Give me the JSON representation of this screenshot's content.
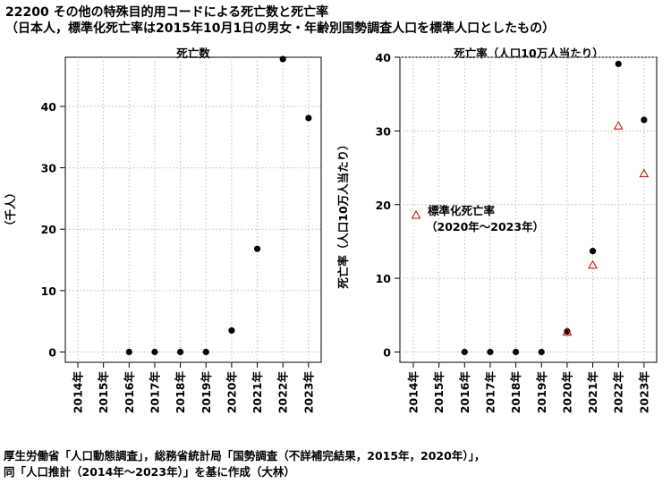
{
  "title": {
    "line1": "22200 その他の特殊目的用コードによる死亡数と死亡率",
    "line2": "（日本人，標準化死亡率は2015年10月1日の男女・年齢別国勢調査人口を標準人口としたもの）"
  },
  "source": {
    "line1": "厚生労働省「人口動態調査」，総務省統計局「国勢調査（不詳補完結果，2015年，2020年）」，",
    "line2": "同「人口推計（2014年～2023年）」を基に作成（大林）"
  },
  "colors": {
    "crude": "#000000",
    "standardized": "#cc0000",
    "grid": "#bbbbbb"
  },
  "chart_data": [
    {
      "type": "scatter",
      "title": "死亡数",
      "ylabel": "（千人）",
      "xlabel": "",
      "categories": [
        "2014年",
        "2015年",
        "2016年",
        "2017年",
        "2018年",
        "2019年",
        "2020年",
        "2021年",
        "2022年",
        "2023年"
      ],
      "ylim": [
        0,
        48
      ],
      "yticks": [
        0,
        10,
        20,
        30,
        40
      ],
      "grid": true,
      "series": [
        {
          "values": [
            null,
            null,
            0,
            0,
            0,
            0,
            3.5,
            16.8,
            47.7,
            38.1
          ],
          "marker": "filled-circle"
        }
      ]
    },
    {
      "type": "scatter",
      "title": "死亡率（人口10万人当たり）",
      "ylabel": "死亡率（人口10万人当たり）",
      "xlabel": "",
      "categories": [
        "2014年",
        "2015年",
        "2016年",
        "2017年",
        "2018年",
        "2019年",
        "2020年",
        "2021年",
        "2022年",
        "2023年"
      ],
      "ylim": [
        0,
        40
      ],
      "yticks": [
        0,
        10,
        20,
        30,
        40
      ],
      "grid": true,
      "legend": {
        "line1": "標準化死亡率",
        "line2": "（2020年～2023年）"
      },
      "series": [
        {
          "values": [
            null,
            null,
            0,
            0,
            0,
            0,
            2.8,
            13.7,
            39.1,
            31.5
          ],
          "marker": "filled-circle"
        },
        {
          "values": [
            null,
            null,
            null,
            null,
            null,
            null,
            2.7,
            11.8,
            30.7,
            24.2
          ],
          "marker": "open-triangle"
        }
      ]
    }
  ]
}
